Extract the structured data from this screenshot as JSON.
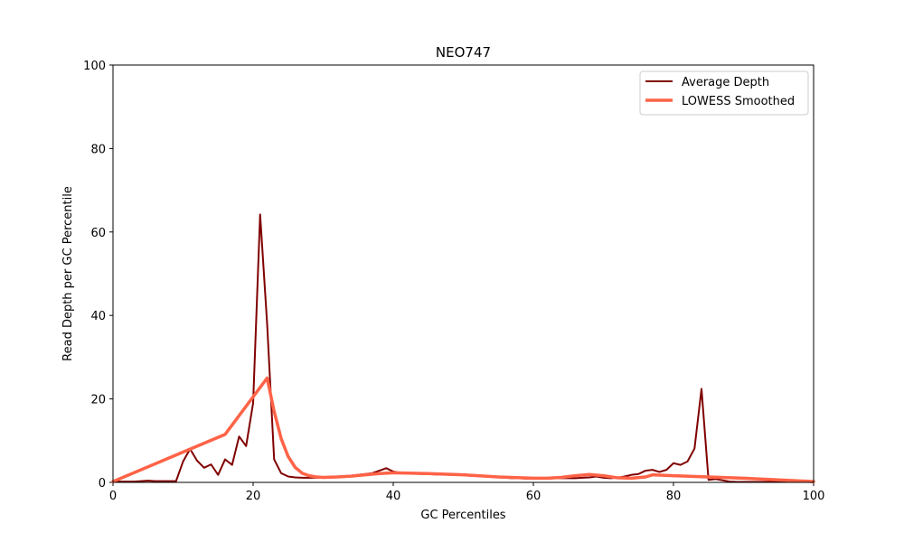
{
  "chart_data": {
    "type": "line",
    "title": "NEO747",
    "xlabel": "GC Percentiles",
    "ylabel": "Read Depth per GC Percentile",
    "xlim": [
      0,
      100
    ],
    "ylim": [
      0,
      100
    ],
    "xticks": [
      "0",
      "20",
      "40",
      "60",
      "80",
      "100"
    ],
    "yticks": [
      "0",
      "20",
      "40",
      "60",
      "80",
      "100"
    ],
    "grid": false,
    "legend_position": "top-right",
    "series": [
      {
        "name": "Average Depth",
        "color": "#800000",
        "x": [
          0,
          1,
          2,
          3,
          4,
          5,
          6,
          7,
          8,
          9,
          10,
          11,
          12,
          13,
          14,
          15,
          16,
          17,
          18,
          19,
          20,
          21,
          22,
          23,
          24,
          25,
          26,
          27,
          28,
          29,
          30,
          31,
          32,
          33,
          34,
          35,
          36,
          37,
          38,
          39,
          40,
          41,
          42,
          43,
          44,
          45,
          46,
          47,
          48,
          49,
          50,
          51,
          52,
          53,
          54,
          55,
          56,
          57,
          58,
          59,
          60,
          61,
          62,
          63,
          64,
          65,
          66,
          67,
          68,
          69,
          70,
          71,
          72,
          73,
          74,
          75,
          76,
          77,
          78,
          79,
          80,
          81,
          82,
          83,
          84,
          85,
          86,
          87,
          88,
          89,
          90,
          91,
          92,
          93,
          94,
          95,
          96,
          97,
          98,
          99,
          100
        ],
        "values": [
          0.2,
          0.2,
          0.2,
          0.2,
          0.3,
          0.4,
          0.3,
          0.3,
          0.3,
          0.3,
          5.0,
          8.0,
          5.2,
          3.5,
          4.3,
          1.8,
          5.5,
          4.2,
          11.0,
          8.7,
          19.0,
          64.2,
          38.0,
          5.5,
          2.2,
          1.4,
          1.2,
          1.1,
          1.1,
          1.1,
          1.1,
          1.2,
          1.3,
          1.4,
          1.6,
          1.8,
          2.0,
          2.2,
          2.8,
          3.4,
          2.6,
          2.3,
          2.2,
          2.1,
          2.0,
          2.0,
          1.9,
          1.9,
          1.8,
          1.8,
          1.7,
          1.6,
          1.5,
          1.4,
          1.3,
          1.2,
          1.1,
          1.0,
          1.0,
          0.9,
          0.9,
          0.9,
          0.9,
          1.0,
          1.0,
          1.0,
          1.0,
          1.1,
          1.2,
          1.4,
          1.1,
          1.0,
          1.1,
          1.4,
          1.8,
          2.0,
          2.8,
          3.0,
          2.5,
          3.0,
          4.6,
          4.2,
          5.0,
          8.1,
          22.4,
          0.6,
          0.8,
          0.5,
          0.2,
          0.1,
          0.1,
          0.1,
          0.1,
          0.1,
          0.1,
          0.1,
          0.1,
          0.1,
          0.1,
          0.1,
          0.1
        ]
      },
      {
        "name": "LOWESS Smoothed",
        "color": "#ff6347",
        "x": [
          0,
          16,
          22,
          23,
          24,
          25,
          26,
          27,
          28,
          29,
          30,
          32,
          34,
          36,
          38,
          40,
          45,
          50,
          55,
          60,
          62,
          64,
          66,
          68,
          70,
          72,
          74,
          76,
          77,
          80,
          85,
          90,
          95,
          100
        ],
        "values": [
          0.2,
          11.5,
          25.0,
          17.0,
          10.5,
          6.2,
          3.6,
          2.2,
          1.6,
          1.3,
          1.2,
          1.3,
          1.5,
          1.8,
          2.1,
          2.3,
          2.1,
          1.8,
          1.3,
          1.0,
          1.0,
          1.2,
          1.6,
          1.9,
          1.6,
          1.1,
          1.0,
          1.3,
          1.8,
          1.6,
          1.3,
          1.0,
          0.6,
          0.2
        ]
      }
    ]
  }
}
